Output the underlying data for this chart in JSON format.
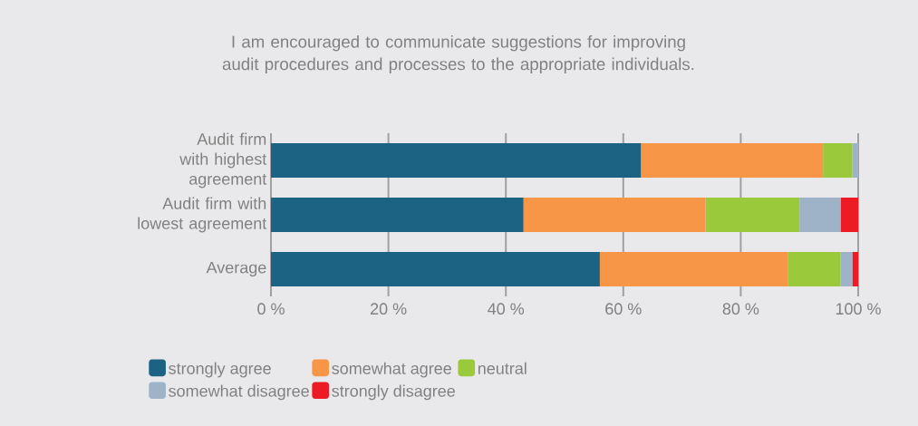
{
  "chart_data": {
    "type": "bar",
    "orientation": "horizontal",
    "stacked": true,
    "title": "I am encouraged to communicate suggestions for improving audit procedures and processes to the appropriate individuals.",
    "categories": [
      "Audit firm with highest agreement",
      "Audit firm with lowest agreement",
      "Average"
    ],
    "series": [
      {
        "name": "strongly agree",
        "color": "#1c6282",
        "values": [
          63,
          43,
          56
        ]
      },
      {
        "name": "somewhat agree",
        "color": "#f79646",
        "values": [
          31,
          31,
          32
        ]
      },
      {
        "name": "neutral",
        "color": "#9aca3c",
        "values": [
          5,
          16,
          9
        ]
      },
      {
        "name": "somewhat disagree",
        "color": "#9fb3c8",
        "values": [
          1,
          7,
          2
        ]
      },
      {
        "name": "strongly disagree",
        "color": "#ed1c24",
        "values": [
          0,
          3,
          1
        ]
      }
    ],
    "xlim": [
      0,
      100
    ],
    "xticks": [
      {
        "value": 0,
        "label": "0 %"
      },
      {
        "value": 20,
        "label": "20 %"
      },
      {
        "value": 40,
        "label": "40 %"
      },
      {
        "value": 60,
        "label": "60 %"
      },
      {
        "value": 80,
        "label": "80 %"
      },
      {
        "value": 100,
        "label": "100 %"
      }
    ],
    "grid": "x",
    "legend": "bottom"
  }
}
